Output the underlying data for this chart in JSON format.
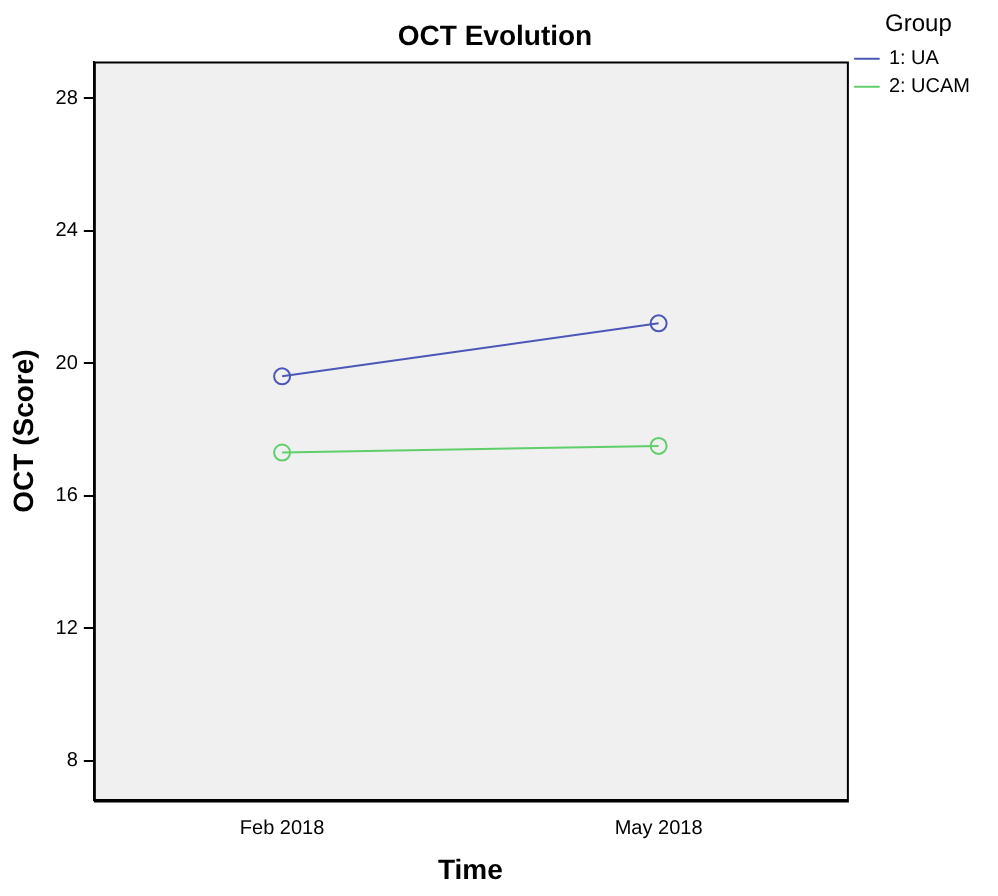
{
  "chart_data": {
    "type": "line",
    "title": "OCT Evolution",
    "xlabel": "Time",
    "ylabel": "OCT (Score)",
    "legend_title": "Group",
    "categories": [
      "Feb 2018",
      "May 2018"
    ],
    "series": [
      {
        "name": "1: UA",
        "color": "#4a57b8",
        "values": [
          19.6,
          21.2
        ]
      },
      {
        "name": "2: UCAM",
        "color": "#5fcf6a",
        "values": [
          17.3,
          17.5
        ]
      }
    ],
    "ylim": [
      6.8,
      29.1
    ],
    "yticks": [
      8,
      12,
      16,
      20,
      24,
      28
    ],
    "grid": false,
    "legend": "top right",
    "marker": "circle",
    "line_style": "solid"
  }
}
